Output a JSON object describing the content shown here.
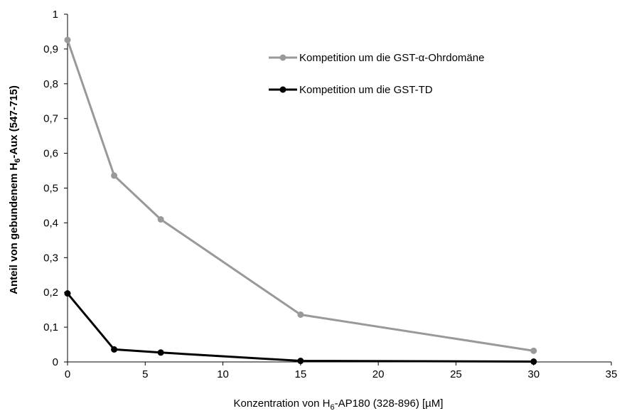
{
  "chart_data": {
    "type": "line",
    "xlabel_parts": [
      "Konzentration von H",
      "6",
      "-AP180 (328-896) [µM]"
    ],
    "ylabel_parts": [
      "Anteil von gebundenem H",
      "6",
      "-Aux (547-715)"
    ],
    "xlim": [
      0,
      35
    ],
    "ylim": [
      0,
      1
    ],
    "xticks": [
      0,
      5,
      10,
      15,
      20,
      25,
      30,
      35
    ],
    "xtick_labels": [
      "0",
      "5",
      "10",
      "15",
      "20",
      "25",
      "30",
      "35"
    ],
    "yticks": [
      0,
      0.1,
      0.2,
      0.3,
      0.4,
      0.5,
      0.6,
      0.7,
      0.8,
      0.9,
      1
    ],
    "ytick_labels": [
      "0",
      "0,1",
      "0,2",
      "0,3",
      "0,4",
      "0,5",
      "0,6",
      "0,7",
      "0,8",
      "0,9",
      "1"
    ],
    "grid": false,
    "legend_position": "top-right",
    "series": [
      {
        "name": "Kompetition um die GST-α-Ohrdomäne",
        "color": "#999999",
        "x": [
          0,
          3,
          6,
          15,
          30
        ],
        "y": [
          0.926,
          0.536,
          0.41,
          0.136,
          0.032
        ]
      },
      {
        "name": "Kompetition um die GST-TD",
        "color": "#000000",
        "x": [
          0,
          3,
          6,
          15,
          30
        ],
        "y": [
          0.197,
          0.036,
          0.027,
          0.003,
          0.001
        ]
      }
    ]
  }
}
